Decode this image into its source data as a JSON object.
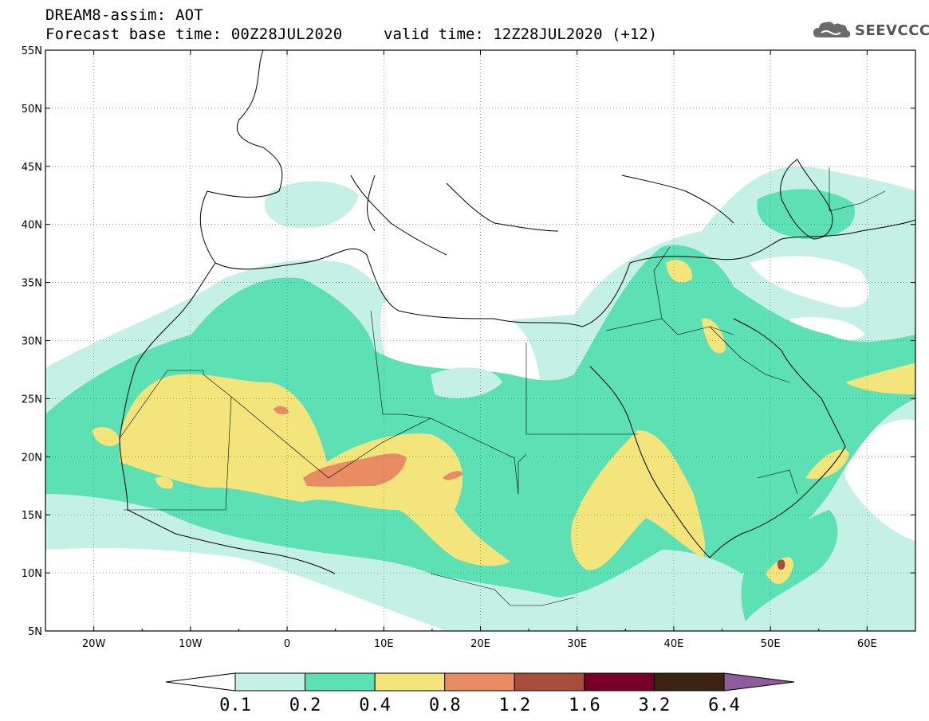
{
  "header": {
    "line1": "DREAM8-assim: AOT",
    "line2": "Forecast base time: 00Z28JUL2020",
    "valid": "valid time: 12Z28JUL2020 (+12)",
    "logo": "SEEVCCC"
  },
  "map": {
    "lon_range": [
      -25,
      65
    ],
    "lat_range": [
      5,
      55
    ],
    "lat_ticks": [
      "5N",
      "10N",
      "15N",
      "20N",
      "25N",
      "30N",
      "35N",
      "40N",
      "45N",
      "50N",
      "55N"
    ],
    "lon_ticks": [
      "20W",
      "10W",
      "0",
      "10E",
      "20E",
      "30E",
      "40E",
      "50E",
      "60E"
    ]
  },
  "colorbar": {
    "labels": [
      "0.1",
      "0.2",
      "0.4",
      "0.8",
      "1.2",
      "1.6",
      "3.2",
      "6.4"
    ],
    "colors": [
      "#c4f0e6",
      "#5ce0b4",
      "#f4e47c",
      "#e88c64",
      "#a84c3c",
      "#780028",
      "#3c2410",
      "#8c5c9c"
    ],
    "under_color": "#ffffff"
  }
}
